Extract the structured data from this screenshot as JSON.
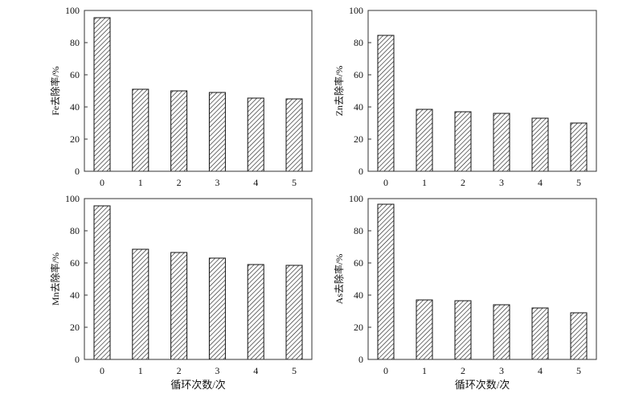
{
  "chart_data": [
    {
      "type": "bar",
      "categories": [
        "0",
        "1",
        "2",
        "3",
        "4",
        "5"
      ],
      "values": [
        95.5,
        51,
        50,
        49,
        45.5,
        45
      ],
      "ylabel": "Fe去除率/%",
      "xlabel": "",
      "ylim": [
        0,
        100
      ],
      "yticks": [
        "0",
        "20",
        "40",
        "60",
        "80",
        "100"
      ],
      "grid": false
    },
    {
      "type": "bar",
      "categories": [
        "0",
        "1",
        "2",
        "3",
        "4",
        "5"
      ],
      "values": [
        84.5,
        38.5,
        37,
        36,
        33,
        30
      ],
      "ylabel": "Zn去除率/%",
      "xlabel": "",
      "ylim": [
        0,
        100
      ],
      "yticks": [
        "0",
        "20",
        "40",
        "60",
        "80",
        "100"
      ],
      "grid": false
    },
    {
      "type": "bar",
      "categories": [
        "0",
        "1",
        "2",
        "3",
        "4",
        "5"
      ],
      "values": [
        95.5,
        68.5,
        66.5,
        63,
        59,
        58.5
      ],
      "ylabel": "Mn去除率/%",
      "xlabel": "循环次数/次",
      "ylim": [
        0,
        100
      ],
      "yticks": [
        "0",
        "20",
        "40",
        "60",
        "80",
        "100"
      ],
      "grid": false
    },
    {
      "type": "bar",
      "categories": [
        "0",
        "1",
        "2",
        "3",
        "4",
        "5"
      ],
      "values": [
        96.5,
        37,
        36.5,
        34,
        32,
        29
      ],
      "ylabel": "As去除率/%",
      "xlabel": "循环次数/次",
      "ylim": [
        0,
        100
      ],
      "yticks": [
        "0",
        "20",
        "40",
        "60",
        "80",
        "100"
      ],
      "grid": false
    }
  ]
}
